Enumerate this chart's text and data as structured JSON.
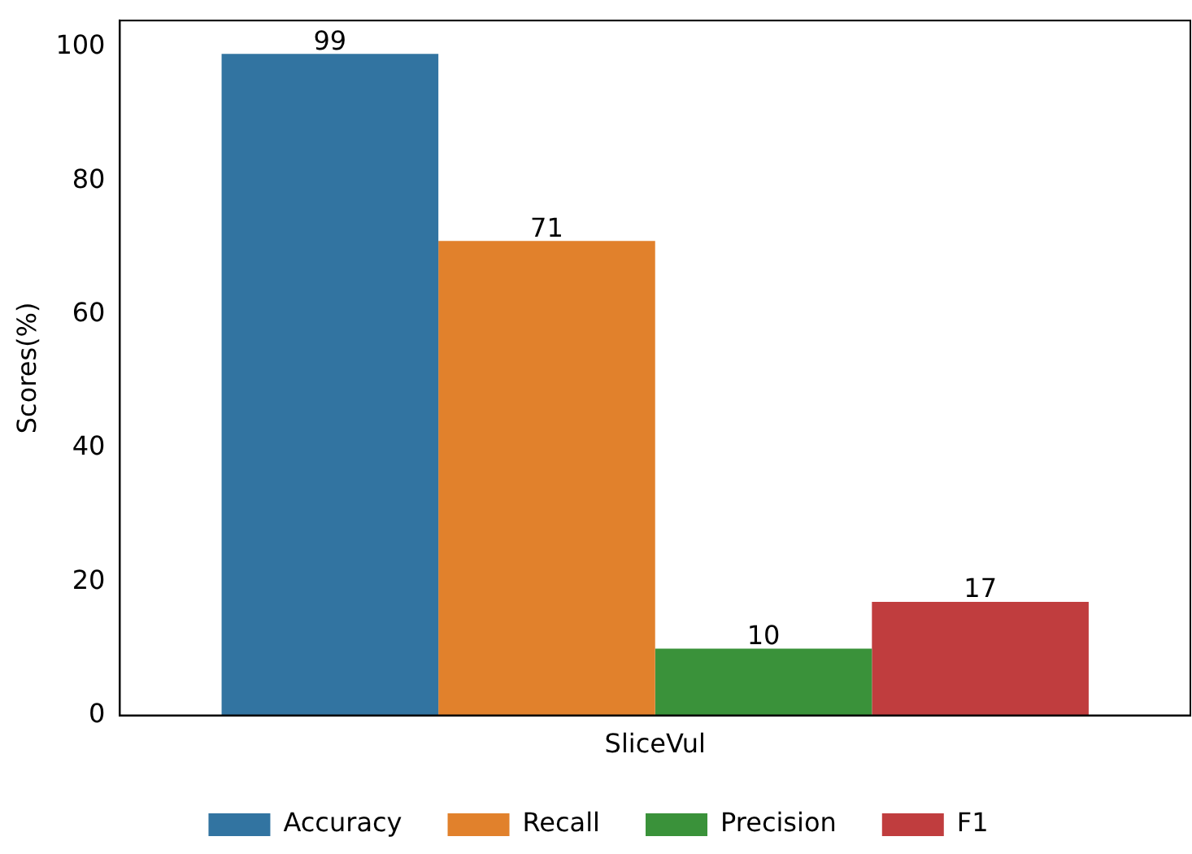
{
  "chart_data": {
    "type": "bar",
    "ylabel": "Scores(%)",
    "categories": [
      "SliceVul"
    ],
    "series": [
      {
        "name": "Accuracy",
        "color": "#3274a1",
        "values": [
          99
        ]
      },
      {
        "name": "Recall",
        "color": "#e1812c",
        "values": [
          71
        ]
      },
      {
        "name": "Precision",
        "color": "#3a923a",
        "values": [
          10
        ]
      },
      {
        "name": "F1",
        "color": "#c03d3e",
        "values": [
          17
        ]
      }
    ],
    "ylim": [
      0,
      104
    ],
    "yticks": [
      0,
      20,
      40,
      60,
      80,
      100
    ],
    "data_labels": true,
    "legend": "bottom",
    "grid": false
  }
}
